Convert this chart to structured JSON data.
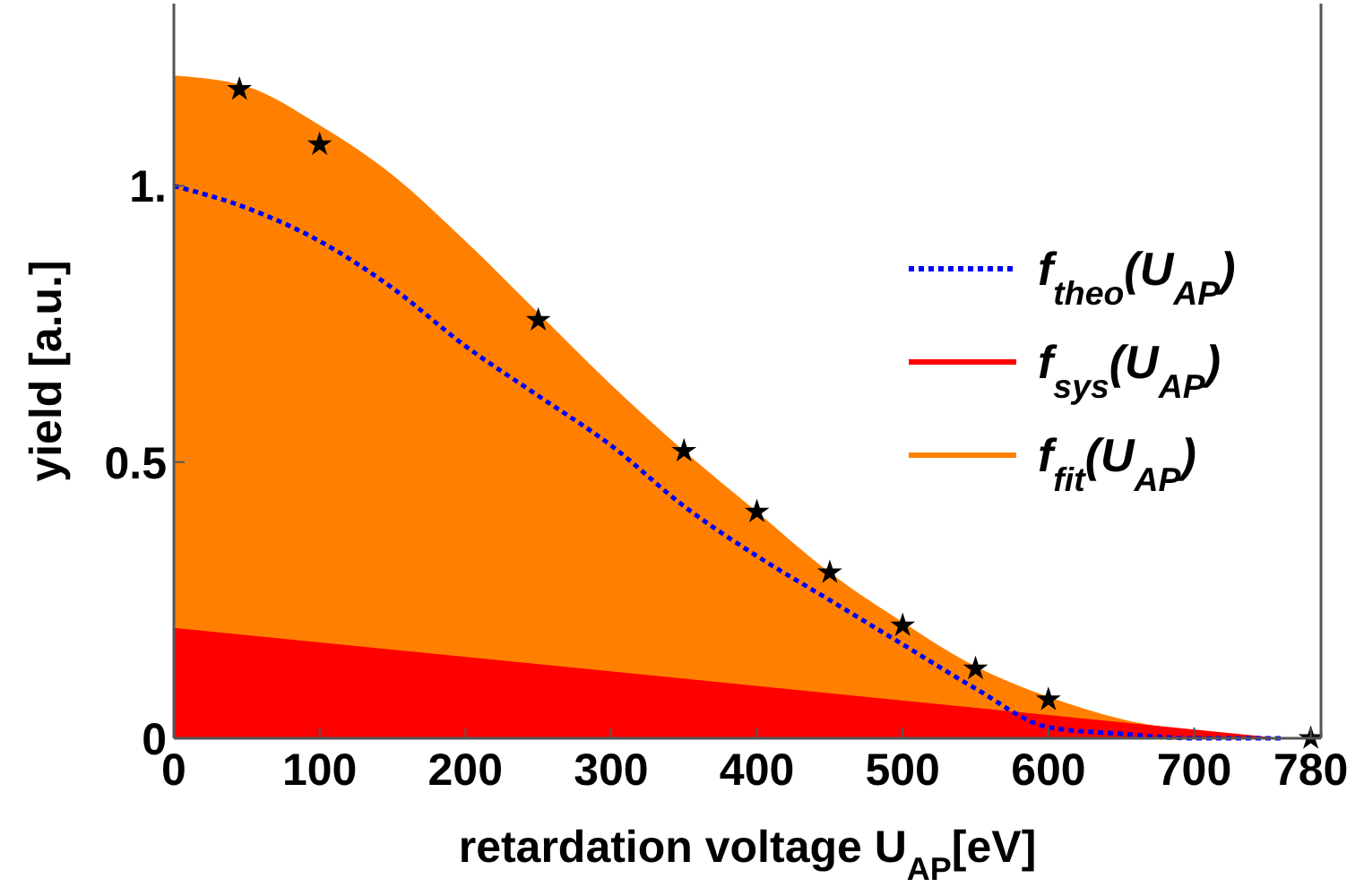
{
  "chart_data": {
    "type": "area",
    "xlabel": "retardation voltage U$_{AP}$[eV]",
    "ylabel": "yield [a.u.]",
    "xlim": [
      0,
      787
    ],
    "ylim": [
      0,
      1.33
    ],
    "xticks": [
      0,
      100,
      200,
      300,
      400,
      500,
      600,
      700,
      780
    ],
    "yticks": [
      0,
      0.5,
      {
        "value": 1,
        "label": "1."
      }
    ],
    "grid": false,
    "legend": "right",
    "series": [
      {
        "name": "f$_{fit}$(U$_{AP}$)",
        "color": "#ff8000",
        "x": [
          0,
          50,
          100,
          150,
          200,
          250,
          300,
          350,
          400,
          450,
          500,
          550,
          600,
          650,
          700,
          760
        ],
        "values": [
          1.2,
          1.18,
          1.11,
          1.02,
          0.9,
          0.77,
          0.64,
          0.52,
          0.41,
          0.3,
          0.21,
          0.13,
          0.075,
          0.035,
          0.012,
          0
        ]
      },
      {
        "name": "f$_{sys}$(U$_{AP}$)",
        "color": "#ff0000",
        "x": [
          0,
          760
        ],
        "values": [
          0.2,
          0
        ]
      },
      {
        "name": "f$_{theo}$(U$_{AP}$)",
        "type": "line",
        "color": "#0000ff",
        "line_style": "dotted",
        "x": [
          0,
          50,
          100,
          150,
          200,
          250,
          300,
          350,
          400,
          450,
          500,
          550,
          600,
          650,
          700,
          760
        ],
        "values": [
          1.0,
          0.96,
          0.9,
          0.815,
          0.71,
          0.62,
          0.53,
          0.42,
          0.33,
          0.25,
          0.17,
          0.09,
          0.02,
          0.008,
          0,
          0
        ]
      },
      {
        "type": "scatter",
        "color": "#000000",
        "marker": "star",
        "x": [
          45,
          100,
          250,
          350,
          400,
          450,
          500,
          550,
          600,
          780
        ],
        "values": [
          1.175,
          1.075,
          0.757,
          0.52,
          0.41,
          0.3,
          0.204,
          0.126,
          0.07,
          0
        ]
      }
    ]
  }
}
